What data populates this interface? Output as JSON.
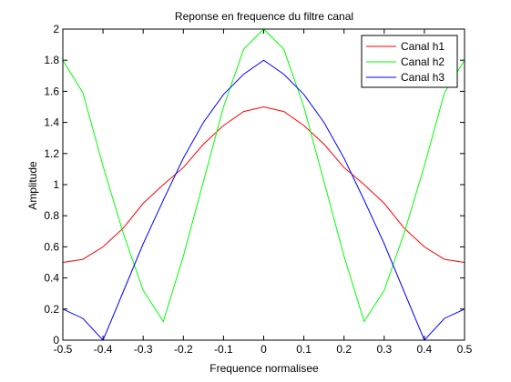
{
  "chart_data": {
    "type": "line",
    "title": "Reponse en frequence du filtre canal",
    "xlabel": "Frequence normalisee",
    "ylabel": "Amplitude",
    "xlim": [
      -0.5,
      0.5
    ],
    "ylim": [
      0,
      2
    ],
    "xticks": [
      "-0.5",
      "-0.4",
      "-0.3",
      "-0.2",
      "-0.1",
      "0",
      "0.1",
      "0.2",
      "0.3",
      "0.4",
      "0.5"
    ],
    "yticks": [
      "0",
      "0.2",
      "0.4",
      "0.6",
      "0.8",
      "1",
      "1.2",
      "1.4",
      "1.6",
      "1.8",
      "2"
    ],
    "grid": false,
    "legend_position": "top-right",
    "x": [
      -0.5,
      -0.45,
      -0.4,
      -0.35,
      -0.3,
      -0.25,
      -0.2,
      -0.15,
      -0.1,
      -0.05,
      0,
      0.05,
      0.1,
      0.15,
      0.2,
      0.25,
      0.3,
      0.35,
      0.4,
      0.45,
      0.5
    ],
    "series": [
      {
        "name": "Canal h1",
        "color": "#ff0000",
        "values": [
          0.5,
          0.52,
          0.6,
          0.72,
          0.88,
          1.0,
          1.11,
          1.26,
          1.38,
          1.47,
          1.5,
          1.47,
          1.38,
          1.26,
          1.11,
          1.0,
          0.88,
          0.72,
          0.6,
          0.52,
          0.5
        ]
      },
      {
        "name": "Canal h2",
        "color": "#00ff00",
        "values": [
          1.8,
          1.59,
          1.12,
          0.69,
          0.32,
          0.12,
          0.54,
          1.02,
          1.5,
          1.87,
          2.0,
          1.87,
          1.5,
          1.02,
          0.54,
          0.12,
          0.32,
          0.69,
          1.12,
          1.59,
          1.8
        ]
      },
      {
        "name": "Canal h3",
        "color": "#0000ff",
        "values": [
          0.2,
          0.14,
          0.0,
          0.31,
          0.62,
          0.9,
          1.17,
          1.4,
          1.58,
          1.71,
          1.8,
          1.71,
          1.58,
          1.4,
          1.17,
          0.9,
          0.62,
          0.31,
          0.0,
          0.14,
          0.2
        ]
      }
    ]
  }
}
